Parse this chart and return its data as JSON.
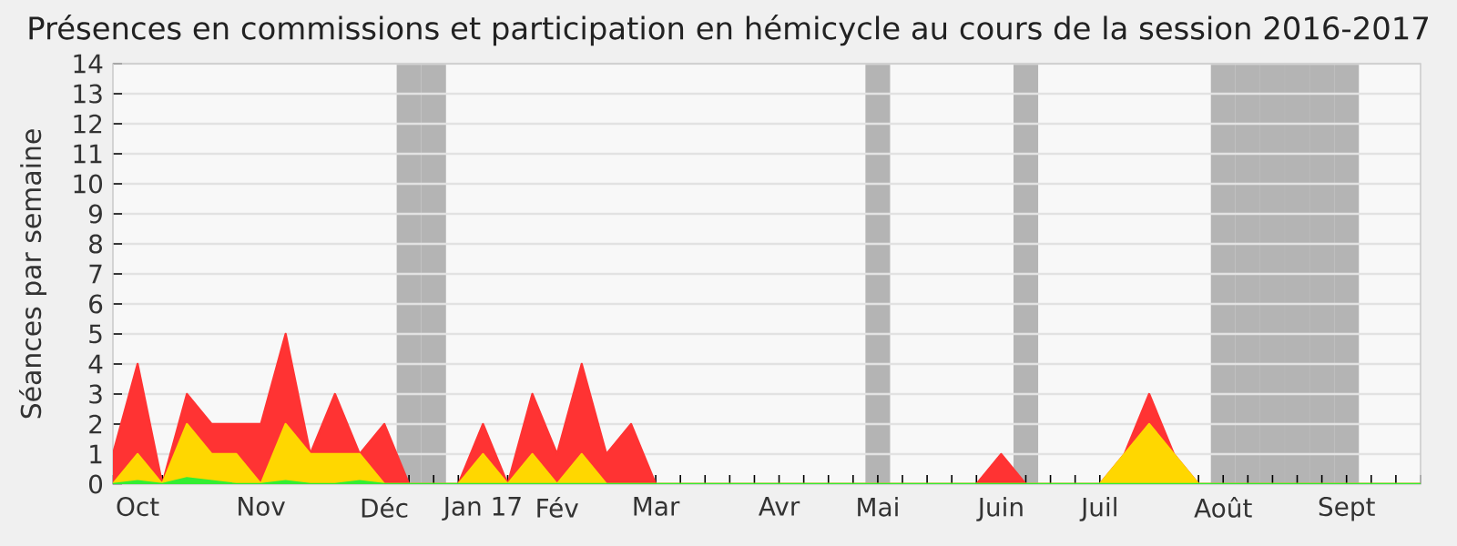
{
  "chart_data": {
    "type": "area",
    "title": "Présences en commissions et participation en hémicycle au cours de la session 2016-2017",
    "ylabel": "Séances par semaine",
    "categories": [
      null,
      "Oct",
      null,
      null,
      null,
      null,
      "Nov",
      null,
      null,
      null,
      null,
      "Déc",
      null,
      null,
      null,
      "Jan 17",
      null,
      null,
      "Fév",
      null,
      null,
      null,
      "Mar",
      null,
      null,
      null,
      null,
      "Avr",
      null,
      null,
      null,
      "Mai",
      null,
      null,
      null,
      null,
      "Juin",
      null,
      null,
      null,
      "Juil",
      null,
      null,
      null,
      null,
      "Août",
      null,
      null,
      null,
      null,
      "Sept",
      null,
      null,
      null
    ],
    "series": [
      {
        "color": "#ff3333",
        "values": [
          1,
          4,
          0,
          3,
          2,
          2,
          2,
          5,
          1,
          3,
          1,
          2,
          0,
          0,
          0,
          2,
          0,
          3,
          1,
          4,
          1,
          2,
          0,
          0,
          0,
          0,
          0,
          0,
          0,
          0,
          0,
          0,
          0,
          0,
          0,
          0,
          1,
          0,
          0,
          0,
          0,
          1,
          3,
          1,
          0,
          0,
          0,
          0,
          0,
          0,
          0,
          0,
          0,
          0
        ]
      },
      {
        "color": "#ffd700",
        "values": [
          0,
          1,
          0,
          2,
          1,
          1,
          0,
          2,
          1,
          1,
          1,
          0,
          0,
          0,
          0,
          1,
          0,
          1,
          0,
          1,
          0,
          0,
          0,
          0,
          0,
          0,
          0,
          0,
          0,
          0,
          0,
          0,
          0,
          0,
          0,
          0,
          0,
          0,
          0,
          0,
          0,
          1,
          2,
          1,
          0,
          0,
          0,
          0,
          0,
          0,
          0,
          0,
          0,
          0
        ]
      },
      {
        "color": "#33ee33",
        "values": [
          0,
          0.1,
          0,
          0.2,
          0.1,
          0,
          0,
          0.1,
          0,
          0,
          0.1,
          0,
          0,
          0,
          0,
          0,
          0,
          0,
          0,
          0,
          0,
          0,
          0,
          0,
          0,
          0,
          0,
          0,
          0,
          0,
          0,
          0,
          0,
          0,
          0,
          0,
          0,
          0,
          0,
          0,
          0,
          0,
          0,
          0,
          0,
          0,
          0,
          0,
          0,
          0,
          0,
          0,
          0,
          0
        ]
      }
    ],
    "ylim": [
      0,
      14
    ],
    "yticks": [
      0,
      1,
      2,
      3,
      4,
      5,
      6,
      7,
      8,
      9,
      10,
      11,
      12,
      13,
      14
    ],
    "grid": "y"
  }
}
